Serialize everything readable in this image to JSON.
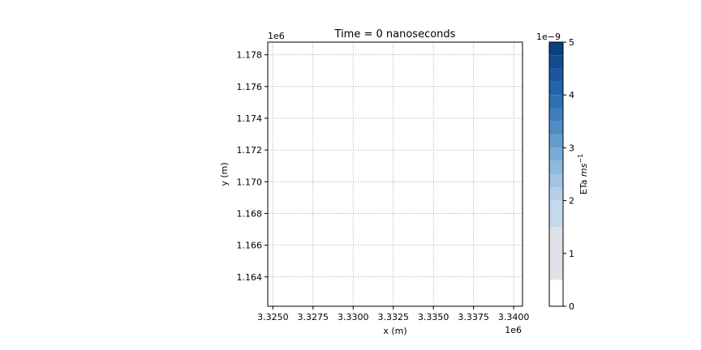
{
  "chart_data": {
    "type": "heatmap",
    "title": "Time = 0 nanoseconds",
    "xlabel": "x (m)",
    "ylabel": "y (m)",
    "x_offset_label": "1e6",
    "y_offset_label": "1e6",
    "xlim": [
      3.32468,
      3.34055
    ],
    "ylim": [
      1.16215,
      1.1788
    ],
    "x_ticks": [
      3.325,
      3.3275,
      3.33,
      3.3325,
      3.335,
      3.3375,
      3.34
    ],
    "x_tick_labels": [
      "3.3250",
      "3.3275",
      "3.3300",
      "3.3325",
      "3.3350",
      "3.3375",
      "3.3400"
    ],
    "y_ticks": [
      1.164,
      1.166,
      1.168,
      1.17,
      1.172,
      1.174,
      1.176,
      1.178
    ],
    "y_tick_labels": [
      "1.164",
      "1.166",
      "1.168",
      "1.170",
      "1.172",
      "1.174",
      "1.176",
      "1.178"
    ],
    "grid": true,
    "field_values": [],
    "colorbar": {
      "label": "ETa",
      "unit_base": "ms",
      "unit_exp": "−1",
      "offset_label": "1e−9",
      "range": [
        0,
        5
      ],
      "ticks": [
        0,
        1,
        2,
        3,
        4,
        5
      ],
      "tick_labels": [
        "0",
        "1",
        "2",
        "3",
        "4",
        "5"
      ],
      "levels": [
        0,
        0.5,
        1.5,
        2.0,
        2.25,
        2.5,
        2.75,
        3.0,
        3.25,
        3.5,
        3.75,
        4.0,
        4.25,
        4.5,
        4.75,
        5.0
      ],
      "colors": [
        "#ffffff",
        "#dfe2e6",
        "#c6d9ec",
        "#b5cfe8",
        "#a3c4e3",
        "#8fb8de",
        "#7aabd7",
        "#659cce",
        "#518dc5",
        "#3f7ebd",
        "#2f6fb3",
        "#2463a9",
        "#1a579e",
        "#124b8f",
        "#0b3f7e"
      ]
    }
  }
}
